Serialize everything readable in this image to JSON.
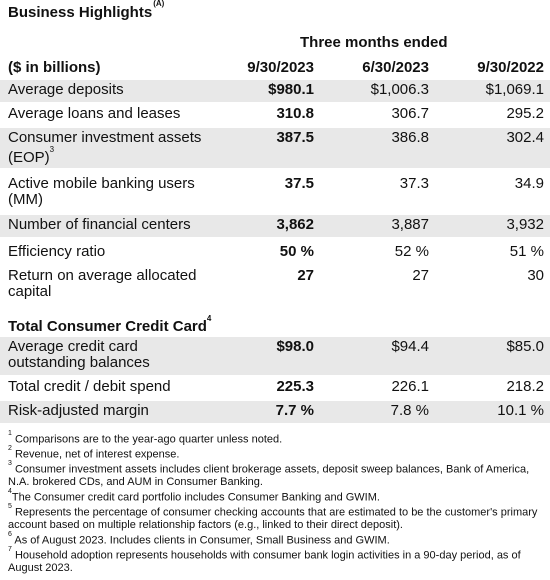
{
  "title": "Business Highlights",
  "title_footnote": "(A)",
  "period_header": "Three months ended",
  "units_label": "($ in billions)",
  "columns": [
    "9/30/2023",
    "6/30/2023",
    "9/30/2022"
  ],
  "rows": [
    {
      "label": "Average deposits",
      "sup": "",
      "values": [
        "$980.1",
        "$1,006.3",
        "$1,069.1"
      ]
    },
    {
      "label": "Average loans and leases",
      "sup": "",
      "values": [
        "310.8",
        "306.7",
        "295.2"
      ]
    },
    {
      "label": "Consumer investment assets (EOP)",
      "sup": "3",
      "values": [
        "387.5",
        "386.8",
        "302.4"
      ]
    },
    {
      "label": "Active mobile banking users (MM)",
      "sup": "",
      "values": [
        "37.5",
        "37.3",
        "34.9"
      ]
    },
    {
      "label": "Number of financial centers",
      "sup": "",
      "values": [
        "3,862",
        "3,887",
        "3,932"
      ]
    },
    {
      "label": "Efficiency ratio",
      "sup": "",
      "values": [
        "50 %",
        "52 %",
        "51 %"
      ]
    },
    {
      "label": "Return on average allocated capital",
      "sup": "",
      "values": [
        "27",
        "27",
        "30"
      ]
    }
  ],
  "section2": {
    "label": "Total Consumer Credit Card",
    "sup": "4",
    "rows": [
      {
        "label": "Average credit card outstanding balances",
        "values": [
          "$98.0",
          "$94.4",
          "$85.0"
        ]
      },
      {
        "label": "Total credit / debit spend",
        "values": [
          "225.3",
          "226.1",
          "218.2"
        ]
      },
      {
        "label": "Risk-adjusted margin",
        "values": [
          "7.7 %",
          "7.8 %",
          "10.1 %"
        ]
      }
    ]
  },
  "footnotes": [
    {
      "num": "1",
      "text": "Comparisons are to the year-ago quarter unless noted."
    },
    {
      "num": "2",
      "text": "Revenue, net of interest expense."
    },
    {
      "num": "3",
      "text": "Consumer investment assets includes client brokerage assets, deposit sweep balances, Bank of America, N.A. brokered CDs, and AUM in Consumer Banking."
    },
    {
      "num": "4",
      "text": "The Consumer credit card portfolio includes Consumer Banking and GWIM."
    },
    {
      "num": "5",
      "text": "Represents the percentage of consumer checking accounts that are estimated to be the customer's primary account based on multiple relationship factors (e.g., linked to their direct deposit)."
    },
    {
      "num": "6",
      "text": "As of August 2023. Includes clients in Consumer, Small Business and GWIM."
    },
    {
      "num": "7",
      "text": "Household adoption represents households with consumer bank login activities in a 90-day period, as of August 2023."
    }
  ]
}
